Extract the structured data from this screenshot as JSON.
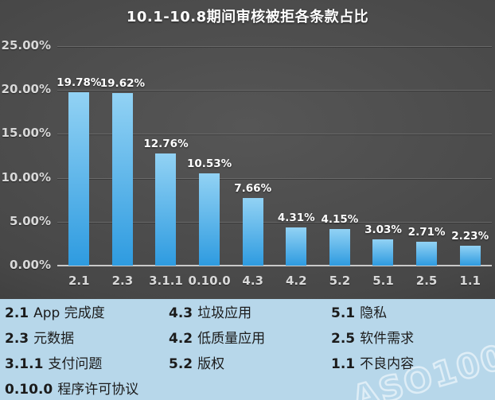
{
  "chart": {
    "title": "10.1-10.8期间审核被拒各条款占比"
  },
  "chart_data": {
    "type": "bar",
    "title": "10.1-10.8期间审核被拒各条款占比",
    "categories": [
      "2.1",
      "2.3",
      "3.1.1",
      "0.10.0",
      "4.3",
      "4.2",
      "5.2",
      "5.1",
      "2.5",
      "1.1"
    ],
    "values": [
      19.78,
      19.62,
      12.76,
      10.53,
      7.66,
      4.31,
      4.15,
      3.03,
      2.71,
      2.23
    ],
    "value_labels": [
      "19.78%",
      "19.62%",
      "12.76%",
      "10.53%",
      "7.66%",
      "4.31%",
      "4.15%",
      "3.03%",
      "2.71%",
      "2.23%"
    ],
    "xlabel": "",
    "ylabel": "",
    "ylim": [
      0,
      25
    ],
    "ytick_step": 5,
    "yticks": [
      "0.00%",
      "5.00%",
      "10.00%",
      "15.00%",
      "20.00%",
      "25.00%"
    ],
    "grid": true,
    "legend_position": "bottom"
  },
  "legend": {
    "columns": [
      [
        {
          "num": "2.1",
          "text": "App 完成度"
        },
        {
          "num": "2.3",
          "text": "元数据"
        },
        {
          "num": "3.1.1",
          "text": "支付问题"
        },
        {
          "num": "0.10.0",
          "text": "程序许可协议"
        }
      ],
      [
        {
          "num": "4.3",
          "text": "垃圾应用"
        },
        {
          "num": "4.2",
          "text": "低质量应用"
        },
        {
          "num": "5.2",
          "text": "版权"
        }
      ],
      [
        {
          "num": "5.1",
          "text": "隐私"
        },
        {
          "num": "2.5",
          "text": "软件需求"
        },
        {
          "num": "1.1",
          "text": "不良内容"
        }
      ]
    ]
  },
  "watermark": {
    "text": "ASO100"
  },
  "colors": {
    "bar_gradient_top": "#92D2F4",
    "bar_gradient_bottom": "#2E9BE0",
    "chart_bg_center": "#565656",
    "chart_bg_edge": "#2B2B2B",
    "gridline": "#6A6A6A",
    "axis_line": "#C9C9C9",
    "label_text": "#FFFFFF",
    "tick_text": "#D9D9D9",
    "legend_bg": "#B7D7EA",
    "legend_text": "#1B1B1B"
  }
}
